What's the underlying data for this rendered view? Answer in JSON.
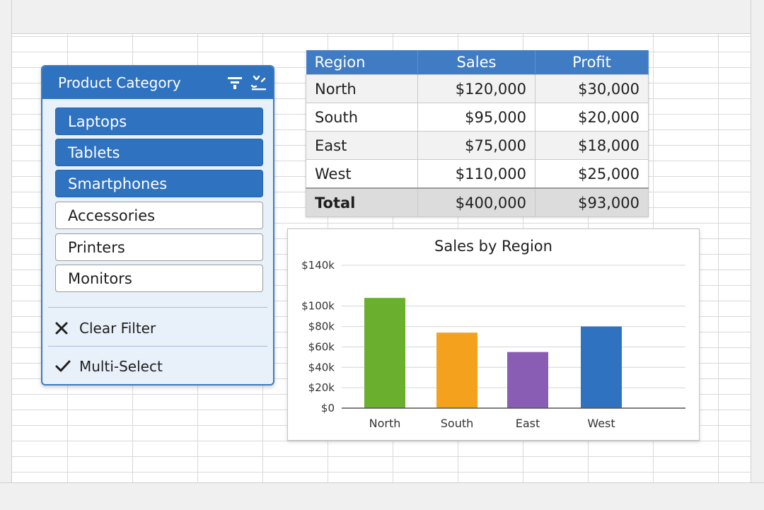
{
  "slicer": {
    "title": "Product Category",
    "header_icons": [
      "multi-select-icon",
      "clear-filter-icon"
    ],
    "items": [
      {
        "label": "Laptops",
        "selected": true
      },
      {
        "label": "Tablets",
        "selected": true
      },
      {
        "label": "Smartphones",
        "selected": true
      },
      {
        "label": "Accessories",
        "selected": false
      },
      {
        "label": "Printers",
        "selected": false
      },
      {
        "label": "Monitors",
        "selected": false
      }
    ],
    "actions": [
      {
        "label": "Clear Filter",
        "icon": "close-icon"
      },
      {
        "label": "Multi-Select",
        "icon": "checkmark-icon"
      }
    ]
  },
  "table": {
    "headers": [
      "Region",
      "Sales",
      "Profit"
    ],
    "rows": [
      [
        "North",
        "$120,000",
        "$30,000"
      ],
      [
        "South",
        "$95,000",
        "$20,000"
      ],
      [
        "East",
        "$75,000",
        "$18,000"
      ],
      [
        "West",
        "$110,000",
        "$25,000"
      ]
    ],
    "total": [
      "Total",
      "$400,000",
      "$93,000"
    ]
  },
  "chart_data": {
    "type": "bar",
    "title": "Sales by Region",
    "categories": [
      "North",
      "South",
      "East",
      "West"
    ],
    "values": [
      108000,
      74000,
      55000,
      80000
    ],
    "colors": [
      "#6aaf2e",
      "#f4a21d",
      "#8a5db5",
      "#2f72c0"
    ],
    "ylim": [
      0,
      140000
    ],
    "yticks": [
      0,
      20000,
      40000,
      60000,
      80000,
      100000,
      140000
    ],
    "ytick_labels": [
      "$0",
      "$20k",
      "$40k",
      "$60k",
      "$80k",
      "$100k",
      "$140k"
    ],
    "grid": true,
    "xlabel": "",
    "ylabel": ""
  },
  "colors": {
    "accent": "#2f72c0",
    "slicer_background": "#e8f0f9",
    "header_background": "#3f7cc3"
  }
}
